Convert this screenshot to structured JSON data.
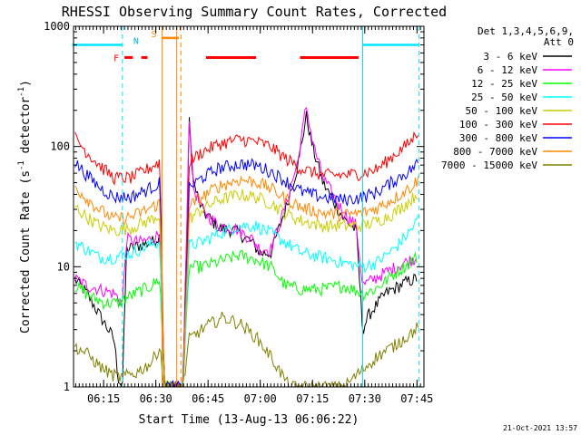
{
  "chart_data": {
    "type": "line",
    "title": "RHESSI Observing Summary Count Rates, Corrected",
    "xlabel": "Start Time (13-Aug-13 06:06:22)",
    "ylabel": "Corrected Count Rate (s",
    "ylabel_sup1": "-1",
    "ylabel_mid": " detector",
    "ylabel_sup2": "-1",
    "ylabel_end": ")",
    "y_scale": "log",
    "ylim": [
      1,
      1000
    ],
    "y_ticks": [
      1,
      10,
      100,
      1000
    ],
    "y_tick_labels": [
      "1",
      "10",
      "100",
      "1000"
    ],
    "xlim": [
      6.1061,
      7.7833
    ],
    "x_ticks": [
      6.25,
      6.5,
      6.75,
      7.0,
      7.25,
      7.5,
      7.75
    ],
    "x_tick_labels": [
      "06:15",
      "06:30",
      "06:45",
      "07:00",
      "07:15",
      "07:30",
      "07:45"
    ],
    "legend_header": [
      "Det 1,3,4,5,6,9,",
      "Att 0"
    ],
    "legend_position": "right",
    "date_stamp": "21-Oct-2021 13:57",
    "flags": {
      "night_label": "N",
      "saa_label": "S",
      "flare_label": "F",
      "night_intervals": [
        [
          6.1,
          6.34
        ],
        [
          7.49,
          7.76
        ]
      ],
      "saa_interval": [
        6.53,
        6.61
      ],
      "flare_intervals": [
        [
          6.35,
          6.39
        ],
        [
          6.43,
          6.46
        ],
        [
          6.74,
          6.98
        ],
        [
          7.19,
          7.47
        ]
      ],
      "event_lines_dashed_cyan": [
        6.34,
        7.76
      ],
      "event_lines_solid_cyan": [
        7.49
      ],
      "event_lines_dashed_orange": [
        6.62
      ],
      "event_lines_solid_orange": [
        6.53,
        6.6
      ]
    },
    "series": [
      {
        "name": "3 - 6 keV",
        "color": "#000000",
        "points": [
          [
            6.11,
            8
          ],
          [
            6.17,
            6
          ],
          [
            6.23,
            4
          ],
          [
            6.3,
            2.5
          ],
          [
            6.32,
            1.2
          ],
          [
            6.34,
            1
          ],
          [
            6.36,
            14
          ],
          [
            6.42,
            15
          ],
          [
            6.48,
            16
          ],
          [
            6.52,
            18
          ],
          [
            6.54,
            1
          ],
          [
            6.63,
            1
          ],
          [
            6.66,
            160
          ],
          [
            6.68,
            50
          ],
          [
            6.72,
            30
          ],
          [
            6.8,
            21
          ],
          [
            6.88,
            20
          ],
          [
            6.96,
            16
          ],
          [
            7.0,
            13
          ],
          [
            7.05,
            13
          ],
          [
            7.12,
            30
          ],
          [
            7.18,
            70
          ],
          [
            7.22,
            180
          ],
          [
            7.25,
            100
          ],
          [
            7.3,
            50
          ],
          [
            7.4,
            25
          ],
          [
            7.46,
            20
          ],
          [
            7.49,
            3
          ],
          [
            7.52,
            4
          ],
          [
            7.6,
            6
          ],
          [
            7.7,
            7.5
          ],
          [
            7.75,
            8
          ]
        ]
      },
      {
        "name": "6 - 12 keV",
        "color": "#ff00ff",
        "points": [
          [
            6.11,
            8
          ],
          [
            6.17,
            7
          ],
          [
            6.3,
            6
          ],
          [
            6.34,
            5
          ],
          [
            6.36,
            17
          ],
          [
            6.42,
            16
          ],
          [
            6.48,
            17
          ],
          [
            6.52,
            19
          ],
          [
            6.54,
            1
          ],
          [
            6.63,
            1
          ],
          [
            6.66,
            180
          ],
          [
            6.68,
            45
          ],
          [
            6.72,
            30
          ],
          [
            6.8,
            22
          ],
          [
            6.88,
            21
          ],
          [
            6.96,
            17
          ],
          [
            7.0,
            14
          ],
          [
            7.05,
            14
          ],
          [
            7.12,
            32
          ],
          [
            7.18,
            75
          ],
          [
            7.22,
            220
          ],
          [
            7.25,
            110
          ],
          [
            7.3,
            55
          ],
          [
            7.4,
            28
          ],
          [
            7.46,
            22
          ],
          [
            7.49,
            7
          ],
          [
            7.6,
            9
          ],
          [
            7.7,
            11
          ],
          [
            7.75,
            12
          ]
        ]
      },
      {
        "name": "12 - 25 keV",
        "color": "#00ff00",
        "points": [
          [
            6.11,
            7
          ],
          [
            6.2,
            5.5
          ],
          [
            6.26,
            5
          ],
          [
            6.32,
            5
          ],
          [
            6.4,
            6
          ],
          [
            6.48,
            7
          ],
          [
            6.52,
            8
          ],
          [
            6.54,
            1
          ],
          [
            6.63,
            1
          ],
          [
            6.66,
            10
          ],
          [
            6.72,
            10
          ],
          [
            6.8,
            11
          ],
          [
            6.9,
            12.5
          ],
          [
            6.98,
            11.5
          ],
          [
            7.05,
            10
          ],
          [
            7.12,
            7
          ],
          [
            7.2,
            6.5
          ],
          [
            7.3,
            6.5
          ],
          [
            7.4,
            7
          ],
          [
            7.49,
            6
          ],
          [
            7.55,
            6.5
          ],
          [
            7.65,
            9
          ],
          [
            7.72,
            11
          ],
          [
            7.75,
            12
          ]
        ]
      },
      {
        "name": "25 - 50 keV",
        "color": "#00ffff",
        "points": [
          [
            6.11,
            16
          ],
          [
            6.17,
            14
          ],
          [
            6.23,
            12
          ],
          [
            6.3,
            12
          ],
          [
            6.38,
            13
          ],
          [
            6.46,
            15
          ],
          [
            6.52,
            16
          ],
          [
            6.54,
            1
          ],
          [
            6.63,
            1
          ],
          [
            6.66,
            15
          ],
          [
            6.72,
            16
          ],
          [
            6.8,
            19
          ],
          [
            6.9,
            22
          ],
          [
            6.98,
            22
          ],
          [
            7.05,
            19
          ],
          [
            7.12,
            16
          ],
          [
            7.2,
            13
          ],
          [
            7.3,
            12
          ],
          [
            7.38,
            11
          ],
          [
            7.49,
            10
          ],
          [
            7.56,
            11
          ],
          [
            7.64,
            14
          ],
          [
            7.72,
            20
          ],
          [
            7.76,
            26
          ]
        ]
      },
      {
        "name": "50 - 100 keV",
        "color": "#cccc00",
        "points": [
          [
            6.11,
            32
          ],
          [
            6.17,
            26
          ],
          [
            6.23,
            22
          ],
          [
            6.3,
            20
          ],
          [
            6.38,
            21
          ],
          [
            6.46,
            24
          ],
          [
            6.52,
            27
          ],
          [
            6.54,
            1
          ],
          [
            6.63,
            1
          ],
          [
            6.66,
            25
          ],
          [
            6.72,
            30
          ],
          [
            6.8,
            36
          ],
          [
            6.9,
            40
          ],
          [
            6.98,
            38
          ],
          [
            7.05,
            34
          ],
          [
            7.12,
            28
          ],
          [
            7.2,
            24
          ],
          [
            7.3,
            22
          ],
          [
            7.4,
            22
          ],
          [
            7.49,
            22
          ],
          [
            7.56,
            24
          ],
          [
            7.64,
            28
          ],
          [
            7.72,
            36
          ],
          [
            7.76,
            42
          ]
        ]
      },
      {
        "name": "100 - 300 keV",
        "color": "#ff0000",
        "points": [
          [
            6.11,
            120
          ],
          [
            6.17,
            90
          ],
          [
            6.23,
            70
          ],
          [
            6.3,
            55
          ],
          [
            6.38,
            55
          ],
          [
            6.46,
            65
          ],
          [
            6.52,
            75
          ],
          [
            6.54,
            1
          ],
          [
            6.63,
            1
          ],
          [
            6.66,
            75
          ],
          [
            6.72,
            90
          ],
          [
            6.8,
            105
          ],
          [
            6.9,
            115
          ],
          [
            6.98,
            110
          ],
          [
            7.05,
            100
          ],
          [
            7.12,
            80
          ],
          [
            7.2,
            65
          ],
          [
            7.3,
            58
          ],
          [
            7.4,
            58
          ],
          [
            7.49,
            60
          ],
          [
            7.56,
            65
          ],
          [
            7.64,
            85
          ],
          [
            7.72,
            110
          ],
          [
            7.76,
            140
          ]
        ]
      },
      {
        "name": "300 - 800 keV",
        "color": "#0000ff",
        "points": [
          [
            6.11,
            75
          ],
          [
            6.17,
            58
          ],
          [
            6.23,
            46
          ],
          [
            6.3,
            38
          ],
          [
            6.38,
            38
          ],
          [
            6.46,
            44
          ],
          [
            6.52,
            50
          ],
          [
            6.54,
            1
          ],
          [
            6.63,
            1
          ],
          [
            6.66,
            45
          ],
          [
            6.72,
            55
          ],
          [
            6.8,
            66
          ],
          [
            6.9,
            72
          ],
          [
            6.98,
            70
          ],
          [
            7.05,
            62
          ],
          [
            7.12,
            52
          ],
          [
            7.2,
            42
          ],
          [
            7.3,
            38
          ],
          [
            7.4,
            36
          ],
          [
            7.49,
            38
          ],
          [
            7.56,
            42
          ],
          [
            7.64,
            52
          ],
          [
            7.72,
            64
          ],
          [
            7.76,
            75
          ]
        ]
      },
      {
        "name": "800 - 7000 keV",
        "color": "#ff8800",
        "points": [
          [
            6.11,
            47
          ],
          [
            6.17,
            37
          ],
          [
            6.23,
            30
          ],
          [
            6.3,
            25
          ],
          [
            6.38,
            26
          ],
          [
            6.46,
            30
          ],
          [
            6.52,
            34
          ],
          [
            6.54,
            1
          ],
          [
            6.63,
            1
          ],
          [
            6.66,
            32
          ],
          [
            6.72,
            38
          ],
          [
            6.8,
            47
          ],
          [
            6.9,
            53
          ],
          [
            6.98,
            51
          ],
          [
            7.05,
            45
          ],
          [
            7.12,
            37
          ],
          [
            7.2,
            31
          ],
          [
            7.3,
            28
          ],
          [
            7.4,
            27
          ],
          [
            7.49,
            28
          ],
          [
            7.56,
            31
          ],
          [
            7.64,
            37
          ],
          [
            7.72,
            46
          ],
          [
            7.76,
            54
          ]
        ]
      },
      {
        "name": "7000 - 15000 keV",
        "color": "#808000",
        "points": [
          [
            6.11,
            2.2
          ],
          [
            6.17,
            1.9
          ],
          [
            6.23,
            1.5
          ],
          [
            6.28,
            1.3
          ],
          [
            6.32,
            1.2
          ],
          [
            6.4,
            1.3
          ],
          [
            6.48,
            1.6
          ],
          [
            6.52,
            2.2
          ],
          [
            6.54,
            1
          ],
          [
            6.63,
            1
          ],
          [
            6.66,
            2.5
          ],
          [
            6.74,
            3.2
          ],
          [
            6.82,
            3.8
          ],
          [
            6.9,
            3.4
          ],
          [
            6.98,
            2.6
          ],
          [
            7.05,
            1.8
          ],
          [
            7.1,
            1.3
          ],
          [
            7.14,
            1
          ],
          [
            7.4,
            1
          ],
          [
            7.49,
            1.4
          ],
          [
            7.56,
            1.8
          ],
          [
            7.64,
            2.2
          ],
          [
            7.72,
            2.8
          ],
          [
            7.76,
            3.2
          ]
        ]
      }
    ]
  }
}
